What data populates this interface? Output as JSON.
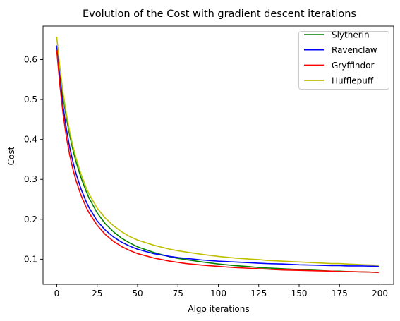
{
  "chart_data": {
    "type": "line",
    "title": "Evolution of the Cost with gradient descent iterations",
    "xlabel": "Algo iterations",
    "ylabel": "Cost",
    "xlim": [
      -8.5,
      208.5
    ],
    "ylim": [
      0.037,
      0.684
    ],
    "xticks": [
      0,
      25,
      50,
      75,
      100,
      125,
      150,
      175,
      200
    ],
    "yticks": [
      0.1,
      0.2,
      0.3,
      0.4,
      0.5,
      0.6
    ],
    "ytick_labels": [
      "0.1",
      "0.2",
      "0.3",
      "0.4",
      "0.5",
      "0.6"
    ],
    "legend_position": "top-right",
    "grid": false,
    "x": [
      0,
      2,
      4,
      6,
      8,
      10,
      12,
      15,
      18,
      20,
      25,
      30,
      35,
      40,
      45,
      50,
      60,
      70,
      75,
      80,
      90,
      100,
      110,
      120,
      125,
      130,
      140,
      150,
      160,
      170,
      175,
      180,
      190,
      199
    ],
    "series": [
      {
        "name": "Slytherin",
        "color": "#008000",
        "values": [
          0.634,
          0.563,
          0.503,
          0.453,
          0.41,
          0.374,
          0.343,
          0.304,
          0.272,
          0.253,
          0.216,
          0.189,
          0.169,
          0.153,
          0.141,
          0.131,
          0.117,
          0.106,
          0.102,
          0.099,
          0.093,
          0.088,
          0.084,
          0.081,
          0.079,
          0.078,
          0.076,
          0.074,
          0.072,
          0.07,
          0.07,
          0.069,
          0.068,
          0.067
        ]
      },
      {
        "name": "Ravenclaw",
        "color": "#0000ff",
        "values": [
          0.634,
          0.549,
          0.48,
          0.425,
          0.38,
          0.344,
          0.313,
          0.276,
          0.246,
          0.229,
          0.196,
          0.173,
          0.156,
          0.143,
          0.133,
          0.125,
          0.114,
          0.107,
          0.104,
          0.102,
          0.098,
          0.095,
          0.093,
          0.091,
          0.09,
          0.089,
          0.088,
          0.086,
          0.085,
          0.084,
          0.084,
          0.083,
          0.083,
          0.082
        ]
      },
      {
        "name": "Gryffindor",
        "color": "#ff0000",
        "values": [
          0.622,
          0.533,
          0.461,
          0.405,
          0.361,
          0.325,
          0.296,
          0.26,
          0.232,
          0.216,
          0.185,
          0.162,
          0.145,
          0.132,
          0.122,
          0.114,
          0.103,
          0.095,
          0.092,
          0.089,
          0.085,
          0.082,
          0.079,
          0.077,
          0.076,
          0.075,
          0.073,
          0.072,
          0.071,
          0.07,
          0.069,
          0.069,
          0.068,
          0.067
        ]
      },
      {
        "name": "Hufflepuff",
        "color": "#bfbf00",
        "values": [
          0.656,
          0.577,
          0.514,
          0.462,
          0.419,
          0.383,
          0.352,
          0.313,
          0.281,
          0.263,
          0.228,
          0.203,
          0.184,
          0.169,
          0.157,
          0.148,
          0.135,
          0.125,
          0.121,
          0.118,
          0.112,
          0.107,
          0.103,
          0.1,
          0.099,
          0.097,
          0.095,
          0.093,
          0.091,
          0.089,
          0.089,
          0.088,
          0.086,
          0.085
        ]
      }
    ]
  }
}
